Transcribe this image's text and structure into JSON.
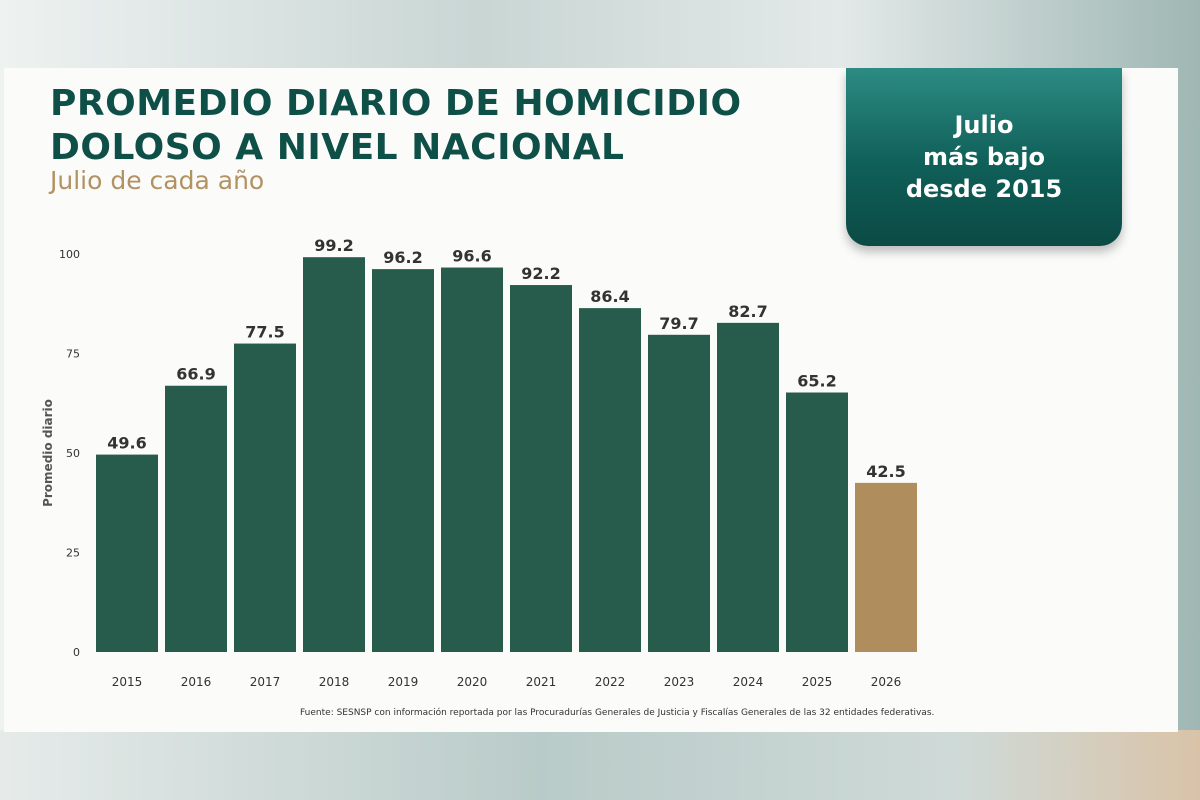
{
  "title": "PROMEDIO DIARIO DE HOMICIDIO\nDOLOSO A NIVEL NACIONAL",
  "subtitle": "Julio de cada año",
  "badge": "Julio\nmás bajo\ndesde 2015",
  "source": "Fuente: SESNSP con información reportada por las Procuradurías Generales de Justicia y Fiscalías Generales de las 32 entidades federativas.",
  "colors": {
    "bar": "#275c4c",
    "highlight": "#b08d5c",
    "title": "#0e4f47",
    "subtitle": "#b39262"
  },
  "chart_data": {
    "type": "bar",
    "title": "PROMEDIO DIARIO DE HOMICIDIO DOLOSO A NIVEL NACIONAL",
    "subtitle": "Julio de cada año",
    "xlabel": "",
    "ylabel": "Promedio diario",
    "categories": [
      "2015",
      "2016",
      "2017",
      "2018",
      "2019",
      "2020",
      "2021",
      "2022",
      "2023",
      "2024",
      "2025",
      "2026"
    ],
    "values": [
      49.6,
      66.9,
      77.5,
      99.2,
      96.2,
      96.6,
      92.2,
      86.4,
      79.7,
      82.7,
      65.2,
      42.5
    ],
    "highlight_category": "2026",
    "ylim": [
      0,
      100
    ],
    "yticks": [
      0,
      25,
      50,
      75,
      100
    ],
    "grid": false,
    "legend": "none",
    "data_labels": true
  }
}
